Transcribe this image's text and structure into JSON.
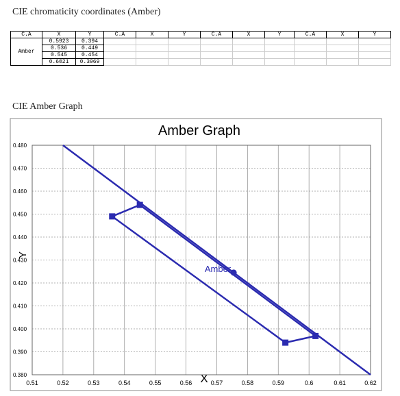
{
  "header": {
    "title": "CIE chromaticity coordinates (Amber)"
  },
  "table": {
    "headers": [
      "C.A",
      "X",
      "Y",
      "C.A",
      "X",
      "Y",
      "C.A",
      "X",
      "Y",
      "C.A",
      "X",
      "Y"
    ],
    "row_label": "Amber",
    "rows": [
      [
        "0.5923",
        "0.394"
      ],
      [
        "0.536",
        "0.449"
      ],
      [
        "0.545",
        "0.454"
      ],
      [
        "0.6021",
        "0.3969"
      ]
    ]
  },
  "section": {
    "title": "CIE Amber Graph"
  },
  "chart_data": {
    "type": "line",
    "title": "Amber Graph",
    "x_label": "X",
    "y_label": "Y",
    "xlim": [
      0.51,
      0.62
    ],
    "ylim": [
      0.38,
      0.48
    ],
    "xticks": [
      0.51,
      0.52,
      0.53,
      0.54,
      0.55,
      0.56,
      0.57,
      0.58,
      0.59,
      0.6,
      0.61,
      0.62
    ],
    "yticks": [
      {
        "value": 0.38,
        "label": "0.380"
      },
      {
        "value": 0.39,
        "label": "0.390"
      },
      {
        "value": 0.4,
        "label": "0.400"
      },
      {
        "value": 0.41,
        "label": "0.410"
      },
      {
        "value": 0.42,
        "label": "0.420"
      },
      {
        "value": 0.43,
        "label": "0.430"
      },
      {
        "value": 0.44,
        "label": "0.440"
      },
      {
        "value": 0.45,
        "label": "0.450"
      },
      {
        "value": 0.46,
        "label": "0.460"
      },
      {
        "value": 0.47,
        "label": "0.470"
      },
      {
        "value": 0.48,
        "label": "0.480"
      }
    ],
    "grid": true,
    "series": [
      {
        "color": "#2b2bb0",
        "closed": true,
        "marker": "square",
        "x": [
          0.5923,
          0.536,
          0.545,
          0.6021
        ],
        "values": [
          0.394,
          0.449,
          0.454,
          0.3969
        ]
      },
      {
        "color": "#2b2bb0",
        "closed": false,
        "marker": "none",
        "x": [
          0.52,
          0.62
        ],
        "values": [
          0.48,
          0.38
        ]
      }
    ],
    "annotation": {
      "text": "Amber",
      "x": 0.5755,
      "y": 0.4245,
      "color": "#2b2bb0"
    }
  }
}
